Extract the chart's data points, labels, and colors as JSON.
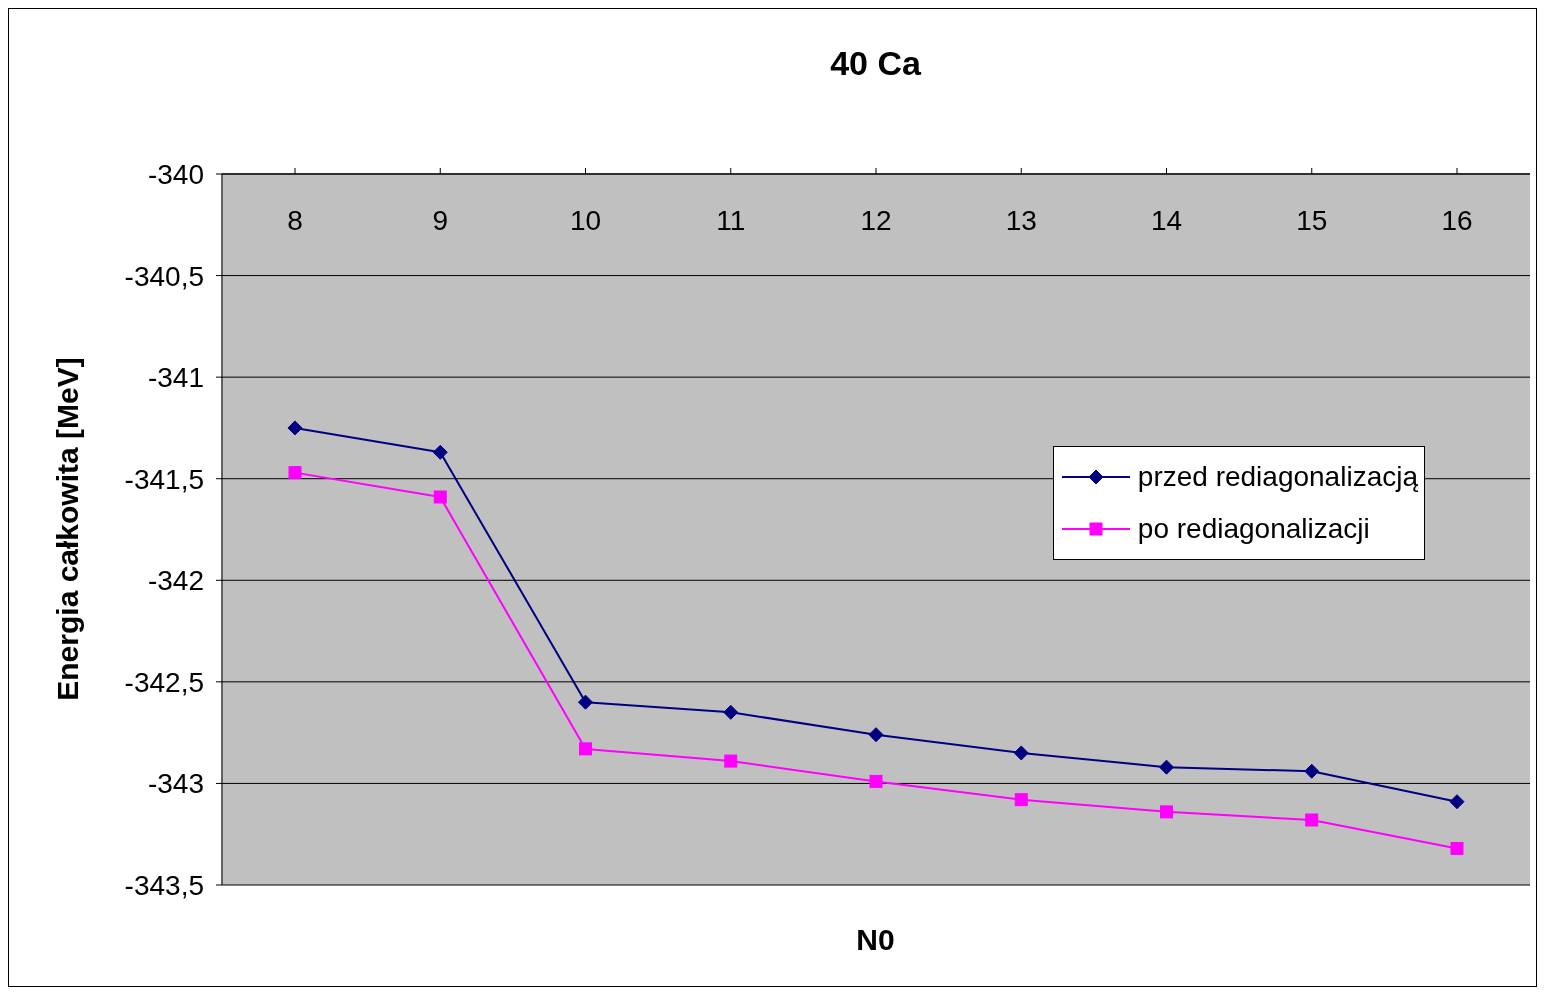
{
  "chart_data": {
    "type": "line",
    "title": "40 Ca",
    "xlabel": "N0",
    "ylabel": "Energia całkowita [MeV]",
    "categories": [
      "8",
      "9",
      "10",
      "11",
      "12",
      "13",
      "14",
      "15",
      "16"
    ],
    "series": [
      {
        "name": "przed rediagonalizacją",
        "color": "#000080",
        "marker": "diamond",
        "values": [
          -341.25,
          -341.37,
          -342.6,
          -342.65,
          -342.76,
          -342.85,
          -342.92,
          -342.94,
          -343.09
        ]
      },
      {
        "name": "po rediagonalizacji",
        "color": "#ff00ff",
        "marker": "square",
        "values": [
          -341.47,
          -341.59,
          -342.83,
          -342.89,
          -342.99,
          -343.08,
          -343.14,
          -343.18,
          -343.32
        ]
      }
    ],
    "ylim": [
      -343.5,
      -340
    ],
    "yticks": [
      -340,
      {
        "value": -340.5,
        "label": "-340,5"
      },
      -341,
      {
        "value": -341.5,
        "label": "-341,5"
      },
      -342,
      {
        "value": -342.5,
        "label": "-342,5"
      },
      -343,
      {
        "value": -343.5,
        "label": "-343,5"
      }
    ],
    "grid": "y",
    "legend": "right"
  }
}
